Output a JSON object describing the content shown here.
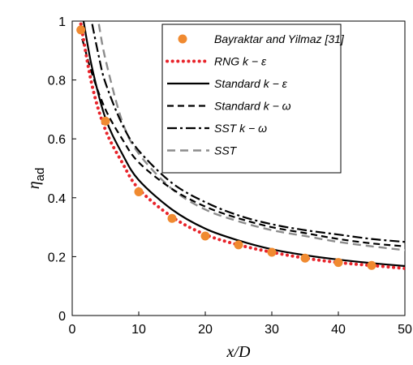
{
  "chart_data": {
    "type": "line",
    "xlabel": "x/D",
    "ylabel": "η",
    "ylabel_sub": "ad",
    "xlim": [
      0,
      50
    ],
    "ylim": [
      0,
      1
    ],
    "xticks": [
      "0",
      "10",
      "20",
      "30",
      "40",
      "50"
    ],
    "yticks": [
      "0",
      "0.2",
      "0.4",
      "0.6",
      "0.8",
      "1"
    ],
    "legend_position": "top-right",
    "grid": false,
    "series": [
      {
        "name": "Bayraktar and Yilmaz [31]",
        "style": "marker",
        "color": "#F08A30",
        "x": [
          1.3,
          5,
          10,
          15,
          20,
          25,
          30,
          35,
          40,
          45
        ],
        "y": [
          0.97,
          0.66,
          0.42,
          0.33,
          0.27,
          0.24,
          0.215,
          0.195,
          0.18,
          0.17
        ]
      },
      {
        "name": "RNG k − ε",
        "style": "dotted",
        "color": "#E8232A",
        "x": [
          1.3,
          3,
          5,
          7.5,
          10,
          15,
          20,
          25,
          30,
          35,
          40,
          45,
          50
        ],
        "y": [
          0.99,
          0.78,
          0.63,
          0.52,
          0.43,
          0.335,
          0.275,
          0.24,
          0.215,
          0.195,
          0.18,
          0.17,
          0.16
        ]
      },
      {
        "name": "Standard k − ε",
        "style": "solid",
        "color": "#000000",
        "x": [
          1.7,
          3,
          5,
          7.5,
          10,
          15,
          20,
          25,
          30,
          35,
          40,
          45,
          50
        ],
        "y": [
          1.0,
          0.84,
          0.67,
          0.55,
          0.46,
          0.36,
          0.295,
          0.255,
          0.225,
          0.205,
          0.19,
          0.178,
          0.168
        ]
      },
      {
        "name": "Standard k − ω",
        "style": "dashed",
        "color": "#000000",
        "x": [
          1.5,
          3,
          5,
          7.5,
          10,
          15,
          20,
          25,
          30,
          35,
          40,
          45,
          50
        ],
        "y": [
          0.94,
          0.82,
          0.7,
          0.6,
          0.52,
          0.43,
          0.37,
          0.33,
          0.3,
          0.28,
          0.26,
          0.245,
          0.235
        ]
      },
      {
        "name": "SST k − ω",
        "style": "dashdot",
        "color": "#000000",
        "x": [
          3,
          4,
          5,
          7.5,
          10,
          15,
          20,
          25,
          30,
          35,
          40,
          45,
          50
        ],
        "y": [
          0.99,
          0.88,
          0.79,
          0.65,
          0.56,
          0.45,
          0.385,
          0.34,
          0.31,
          0.29,
          0.275,
          0.26,
          0.25
        ]
      },
      {
        "name": "SST",
        "style": "dashed-gray",
        "color": "#8C8C8C",
        "x": [
          4,
          5,
          7.5,
          10,
          15,
          20,
          25,
          30,
          35,
          40,
          45,
          50
        ],
        "y": [
          0.99,
          0.87,
          0.66,
          0.55,
          0.43,
          0.36,
          0.32,
          0.29,
          0.27,
          0.25,
          0.235,
          0.222
        ]
      }
    ]
  }
}
